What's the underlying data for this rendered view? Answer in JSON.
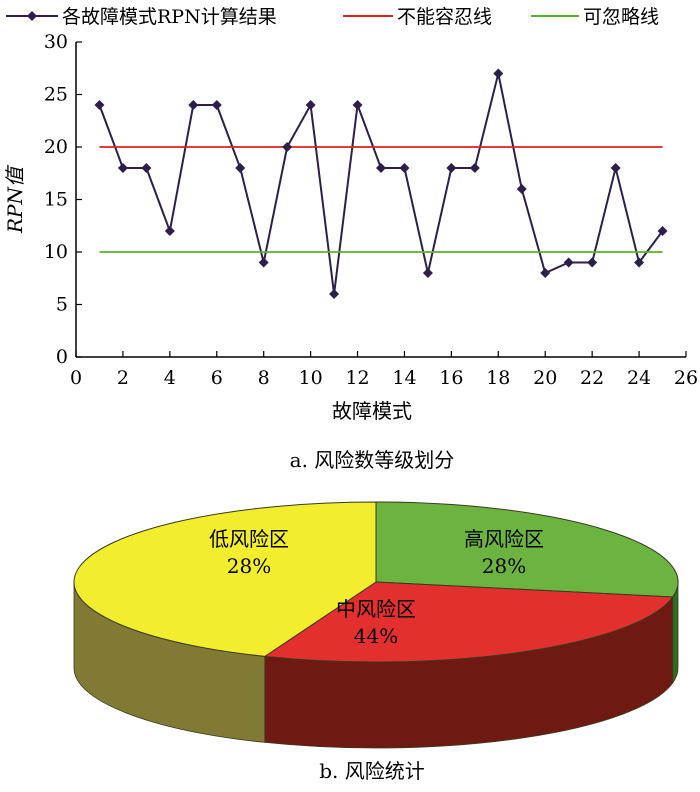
{
  "chart_data": [
    {
      "type": "line",
      "caption": "a. 风险数等级划分",
      "xlabel": "故障模式",
      "ylabel": "RPN值",
      "xlim": [
        0,
        26
      ],
      "ylim": [
        0,
        30
      ],
      "xticks": [
        0,
        2,
        4,
        6,
        8,
        10,
        12,
        14,
        16,
        18,
        20,
        22,
        24,
        26
      ],
      "yticks": [
        0,
        5,
        10,
        15,
        20,
        25,
        30
      ],
      "legend_position": "top",
      "series": [
        {
          "name": "各故障模式RPN计算结果",
          "color": "#2e1f4a",
          "x": [
            1,
            2,
            3,
            4,
            5,
            6,
            7,
            8,
            9,
            10,
            11,
            12,
            13,
            14,
            15,
            16,
            17,
            18,
            19,
            20,
            21,
            22,
            23,
            24,
            25
          ],
          "y": [
            24,
            18,
            18,
            12,
            24,
            24,
            18,
            9,
            20,
            24,
            6,
            24,
            18,
            18,
            8,
            18,
            18,
            27,
            16,
            8,
            9,
            9,
            18,
            9,
            12
          ]
        },
        {
          "name": "不能容忍线",
          "color": "#e02020",
          "x": [
            1,
            25
          ],
          "y": [
            20,
            20
          ]
        },
        {
          "name": "可忽略线",
          "color": "#5cb030",
          "x": [
            1,
            25
          ],
          "y": [
            10,
            10
          ]
        }
      ]
    },
    {
      "type": "pie",
      "caption": "b. 风险统计",
      "slices": [
        {
          "label": "低风险区",
          "value": 28,
          "value_label": "28%",
          "color": "#6db33f",
          "side_color": "#2f6b22"
        },
        {
          "label": "高风险区",
          "value": 28,
          "value_label": "28%",
          "color": "#e3302f",
          "side_color": "#6e1a12"
        },
        {
          "label": "中风险区",
          "value": 44,
          "value_label": "44%",
          "color": "#f2ee2e",
          "side_color": "#807a34"
        }
      ]
    }
  ]
}
